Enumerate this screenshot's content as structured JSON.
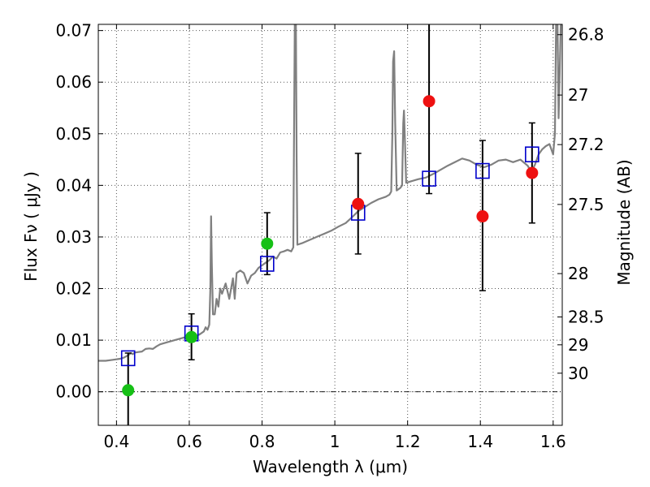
{
  "chart_data": {
    "type": "scatter",
    "title": "",
    "xlabel": "Wavelength  λ (μm)",
    "ylabel": "Flux  Fν  ( μJy )",
    "ylabel_right": "Magnitude (AB)",
    "xlim": [
      0.35,
      1.625
    ],
    "ylim": [
      -0.0065,
      0.0712
    ],
    "grid": true,
    "zero_line": true,
    "x_ticks": [
      0.4,
      0.6,
      0.8,
      1.0,
      1.2,
      1.4,
      1.6
    ],
    "x_tick_labels": [
      "0.4",
      "0.6",
      "0.8",
      "1",
      "1.2",
      "1.4",
      "1.6"
    ],
    "y_ticks": [
      0.0,
      0.01,
      0.02,
      0.03,
      0.04,
      0.05,
      0.06,
      0.07
    ],
    "y_tick_labels": [
      "0.00",
      "0.01",
      "0.02",
      "0.03",
      "0.04",
      "0.05",
      "0.06",
      "0.07"
    ],
    "right_ticks": [
      {
        "flux": 0.0692,
        "label": "26.8"
      },
      {
        "flux": 0.0575,
        "label": "27"
      },
      {
        "flux": 0.0479,
        "label": "27.2"
      },
      {
        "flux": 0.0363,
        "label": "27.5"
      },
      {
        "flux": 0.0229,
        "label": "28"
      },
      {
        "flux": 0.0145,
        "label": "28.5"
      },
      {
        "flux": 0.0091,
        "label": "29"
      },
      {
        "flux": 0.0036,
        "label": "30"
      }
    ],
    "colors": {
      "sed": "#808080",
      "green": "#16c016",
      "red": "#ee1111",
      "model": "#0000cc",
      "error": "#000000",
      "grid": "#555555"
    },
    "series": [
      {
        "marker": "square-open",
        "color": "#0000cc",
        "points": [
          {
            "x": 0.432,
            "y": 0.0065
          },
          {
            "x": 0.606,
            "y": 0.0113
          },
          {
            "x": 0.814,
            "y": 0.0248
          },
          {
            "x": 1.064,
            "y": 0.0347
          },
          {
            "x": 1.259,
            "y": 0.0413
          },
          {
            "x": 1.406,
            "y": 0.0428
          },
          {
            "x": 1.542,
            "y": 0.046
          }
        ]
      },
      {
        "marker": "circle",
        "color": "#16c016",
        "points": [
          {
            "x": 0.432,
            "y": 0.0003,
            "err_lo": 0.0072,
            "err_hi": 0.0072
          },
          {
            "x": 0.606,
            "y": 0.0106,
            "err_lo": 0.0044,
            "err_hi": 0.0045
          },
          {
            "x": 0.814,
            "y": 0.0287,
            "err_lo": 0.006,
            "err_hi": 0.006
          }
        ]
      },
      {
        "marker": "circle",
        "color": "#ee1111",
        "points": [
          {
            "x": 1.064,
            "y": 0.0364,
            "err_lo": 0.0097,
            "err_hi": 0.0098
          },
          {
            "x": 1.259,
            "y": 0.0563,
            "err_lo": 0.0179,
            "err_hi": 0.0179
          },
          {
            "x": 1.406,
            "y": 0.034,
            "err_lo": 0.0144,
            "err_hi": 0.0147
          },
          {
            "x": 1.542,
            "y": 0.0424,
            "err_lo": 0.0097,
            "err_hi": 0.0097
          }
        ]
      }
    ],
    "sed_curve": [
      [
        0.35,
        0.006
      ],
      [
        0.37,
        0.006
      ],
      [
        0.39,
        0.0062
      ],
      [
        0.41,
        0.0064
      ],
      [
        0.42,
        0.0066
      ],
      [
        0.43,
        0.007
      ],
      [
        0.44,
        0.0075
      ],
      [
        0.445,
        0.0073
      ],
      [
        0.45,
        0.0076
      ],
      [
        0.46,
        0.0077
      ],
      [
        0.47,
        0.0078
      ],
      [
        0.48,
        0.0083
      ],
      [
        0.49,
        0.0084
      ],
      [
        0.5,
        0.0083
      ],
      [
        0.51,
        0.0088
      ],
      [
        0.52,
        0.0092
      ],
      [
        0.54,
        0.0096
      ],
      [
        0.56,
        0.01
      ],
      [
        0.58,
        0.0104
      ],
      [
        0.6,
        0.0108
      ],
      [
        0.62,
        0.0108
      ],
      [
        0.63,
        0.0112
      ],
      [
        0.64,
        0.0117
      ],
      [
        0.645,
        0.0125
      ],
      [
        0.65,
        0.012
      ],
      [
        0.655,
        0.013
      ],
      [
        0.658,
        0.02
      ],
      [
        0.66,
        0.034
      ],
      [
        0.662,
        0.025
      ],
      [
        0.665,
        0.015
      ],
      [
        0.67,
        0.015
      ],
      [
        0.675,
        0.018
      ],
      [
        0.68,
        0.0165
      ],
      [
        0.685,
        0.02
      ],
      [
        0.69,
        0.019
      ],
      [
        0.7,
        0.021
      ],
      [
        0.71,
        0.018
      ],
      [
        0.72,
        0.022
      ],
      [
        0.725,
        0.018
      ],
      [
        0.73,
        0.023
      ],
      [
        0.74,
        0.0235
      ],
      [
        0.75,
        0.023
      ],
      [
        0.76,
        0.021
      ],
      [
        0.77,
        0.0225
      ],
      [
        0.78,
        0.023
      ],
      [
        0.79,
        0.024
      ],
      [
        0.8,
        0.0245
      ],
      [
        0.81,
        0.025
      ],
      [
        0.82,
        0.0255
      ],
      [
        0.83,
        0.0262
      ],
      [
        0.84,
        0.0258
      ],
      [
        0.85,
        0.027
      ],
      [
        0.86,
        0.0272
      ],
      [
        0.87,
        0.0275
      ],
      [
        0.88,
        0.0272
      ],
      [
        0.886,
        0.028
      ],
      [
        0.888,
        0.05
      ],
      [
        0.89,
        0.0712
      ],
      [
        0.893,
        0.0712
      ],
      [
        0.895,
        0.045
      ],
      [
        0.897,
        0.0285
      ],
      [
        0.91,
        0.0288
      ],
      [
        0.93,
        0.0294
      ],
      [
        0.95,
        0.03
      ],
      [
        0.97,
        0.0306
      ],
      [
        0.99,
        0.0312
      ],
      [
        1.01,
        0.032
      ],
      [
        1.03,
        0.0327
      ],
      [
        1.05,
        0.034
      ],
      [
        1.064,
        0.035
      ],
      [
        1.08,
        0.0357
      ],
      [
        1.1,
        0.0366
      ],
      [
        1.12,
        0.0373
      ],
      [
        1.14,
        0.0378
      ],
      [
        1.15,
        0.0382
      ],
      [
        1.155,
        0.0388
      ],
      [
        1.158,
        0.05
      ],
      [
        1.16,
        0.064
      ],
      [
        1.163,
        0.066
      ],
      [
        1.166,
        0.052
      ],
      [
        1.17,
        0.039
      ],
      [
        1.18,
        0.0395
      ],
      [
        1.185,
        0.04
      ],
      [
        1.188,
        0.052
      ],
      [
        1.19,
        0.0545
      ],
      [
        1.193,
        0.048
      ],
      [
        1.196,
        0.0405
      ],
      [
        1.21,
        0.0408
      ],
      [
        1.23,
        0.0412
      ],
      [
        1.25,
        0.0415
      ],
      [
        1.27,
        0.0422
      ],
      [
        1.29,
        0.043
      ],
      [
        1.31,
        0.0438
      ],
      [
        1.33,
        0.0445
      ],
      [
        1.35,
        0.0452
      ],
      [
        1.37,
        0.0448
      ],
      [
        1.39,
        0.044
      ],
      [
        1.41,
        0.0435
      ],
      [
        1.43,
        0.044
      ],
      [
        1.45,
        0.0448
      ],
      [
        1.47,
        0.045
      ],
      [
        1.49,
        0.0445
      ],
      [
        1.51,
        0.045
      ],
      [
        1.53,
        0.0438
      ],
      [
        1.54,
        0.0426
      ],
      [
        1.55,
        0.044
      ],
      [
        1.56,
        0.046
      ],
      [
        1.57,
        0.047
      ],
      [
        1.58,
        0.0476
      ],
      [
        1.59,
        0.048
      ],
      [
        1.6,
        0.046
      ],
      [
        1.605,
        0.05
      ],
      [
        1.608,
        0.0712
      ],
      [
        1.612,
        0.0712
      ],
      [
        1.615,
        0.053
      ],
      [
        1.618,
        0.062
      ],
      [
        1.621,
        0.0712
      ],
      [
        1.625,
        0.0712
      ]
    ]
  }
}
